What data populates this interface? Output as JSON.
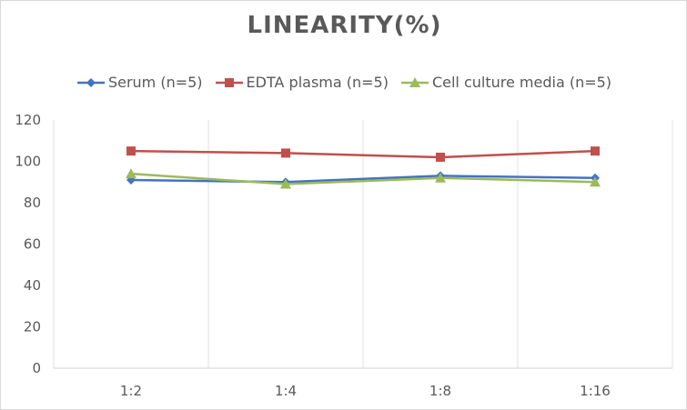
{
  "chart_data": {
    "type": "line",
    "title": "LINEARITY(%)",
    "categories": [
      "1:2",
      "1:4",
      "1:8",
      "1:16"
    ],
    "ylim": [
      0,
      120
    ],
    "yticks": [
      0,
      20,
      40,
      60,
      80,
      100,
      120
    ],
    "grid": "vertical",
    "legend_position": "top",
    "series": [
      {
        "name": "Serum (n=5)",
        "color": "#4472c4",
        "marker": "diamond",
        "values": [
          91,
          90,
          93,
          92
        ]
      },
      {
        "name": "EDTA plasma (n=5)",
        "color": "#c0504d",
        "marker": "square",
        "values": [
          105,
          104,
          102,
          105
        ]
      },
      {
        "name": "Cell culture media (n=5)",
        "color": "#9bbb59",
        "marker": "triangle",
        "values": [
          94,
          89,
          92,
          90
        ]
      }
    ]
  }
}
